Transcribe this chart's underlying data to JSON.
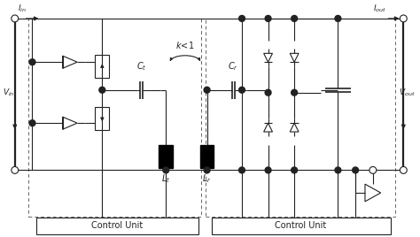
{
  "bg_color": "#ffffff",
  "line_color": "#222222",
  "dashed_color": "#666666",
  "figsize": [
    4.74,
    2.68
  ],
  "dpi": 100,
  "xlim": [
    0,
    47.4
  ],
  "ylim": [
    0,
    26.8
  ]
}
